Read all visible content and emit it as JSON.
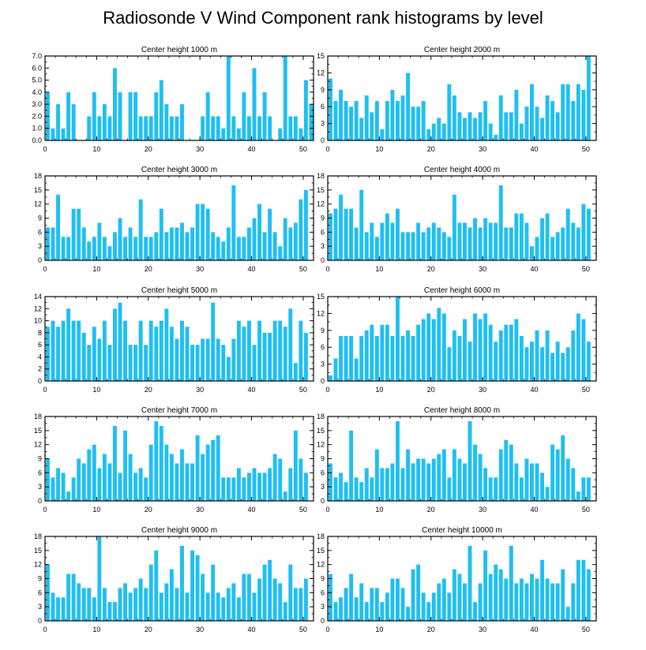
{
  "title": "Radiosonde V Wind Component rank histograms by level",
  "colors": {
    "bar": "#1fbff2",
    "axis": "#000000",
    "background": "#ffffff"
  },
  "chart_data": [
    {
      "type": "bar",
      "title": "Center height 1000 m",
      "xlim": [
        0,
        52
      ],
      "ylim": [
        0,
        7
      ],
      "xticks": [
        0,
        10,
        20,
        30,
        40,
        50
      ],
      "xtick_labels": [
        "0",
        "10",
        "20",
        "30",
        "40",
        "50"
      ],
      "yticks": [
        0,
        1,
        2,
        3,
        4,
        5,
        6,
        7
      ],
      "ytick_labels": [
        "0.0",
        "1.0",
        "2.0",
        "3.0",
        "4.0",
        "5.0",
        "6.0",
        "7.0"
      ],
      "values": [
        4,
        1,
        3,
        1,
        4,
        3,
        0,
        0,
        2,
        4,
        2,
        3,
        2,
        6,
        4,
        0,
        4,
        4,
        2,
        2,
        2,
        4,
        5,
        3,
        2,
        2,
        3,
        0,
        0,
        0,
        2,
        4,
        2,
        2,
        1,
        7,
        2,
        1,
        4,
        2,
        6,
        2,
        4,
        2,
        0,
        1,
        7,
        2,
        2,
        1,
        5,
        3
      ]
    },
    {
      "type": "bar",
      "title": "Center height 2000 m",
      "xlim": [
        0,
        52
      ],
      "ylim": [
        0,
        15
      ],
      "xticks": [
        0,
        10,
        20,
        30,
        40,
        50
      ],
      "xtick_labels": [
        "0",
        "10",
        "20",
        "30",
        "40",
        "50"
      ],
      "yticks": [
        0,
        3,
        6,
        9,
        12,
        15
      ],
      "ytick_labels": [
        "0",
        "3",
        "6",
        "9",
        "12",
        "15"
      ],
      "values": [
        11,
        7,
        9,
        7,
        6,
        7,
        4,
        8,
        5,
        7,
        2,
        7,
        9,
        7,
        8,
        12,
        6,
        6,
        7,
        2,
        3,
        4,
        3,
        10,
        8,
        5,
        4,
        5,
        4,
        5,
        7,
        3,
        1,
        8,
        5,
        5,
        9,
        3,
        6,
        10,
        6,
        4,
        8,
        7,
        5,
        10,
        10,
        7,
        10,
        9,
        15,
        0
      ]
    },
    {
      "type": "bar",
      "title": "Center height 3000 m",
      "xlim": [
        0,
        52
      ],
      "ylim": [
        0,
        18
      ],
      "xticks": [
        0,
        10,
        20,
        30,
        40,
        50
      ],
      "xtick_labels": [
        "0",
        "10",
        "20",
        "30",
        "40",
        "50"
      ],
      "yticks": [
        0,
        3,
        6,
        9,
        12,
        15,
        18
      ],
      "ytick_labels": [
        "0",
        "3",
        "6",
        "9",
        "12",
        "15",
        "18"
      ],
      "values": [
        7,
        7,
        14,
        5,
        5,
        11,
        11,
        7,
        4,
        5,
        8,
        5,
        3,
        6,
        9,
        5,
        7,
        5,
        13,
        5,
        5,
        6,
        11,
        6,
        7,
        7,
        8,
        6,
        7,
        12,
        12,
        11,
        6,
        5,
        4,
        7,
        16,
        5,
        5,
        7,
        9,
        12,
        6,
        11,
        6,
        3,
        9,
        7,
        8,
        13,
        15,
        0
      ]
    },
    {
      "type": "bar",
      "title": "Center height 4000 m",
      "xlim": [
        0,
        52
      ],
      "ylim": [
        0,
        18
      ],
      "xticks": [
        0,
        10,
        20,
        30,
        40,
        50
      ],
      "xtick_labels": [
        "0",
        "10",
        "20",
        "30",
        "40",
        "50"
      ],
      "yticks": [
        0,
        3,
        6,
        9,
        12,
        15,
        18
      ],
      "ytick_labels": [
        "0",
        "3",
        "6",
        "9",
        "12",
        "15",
        "18"
      ],
      "values": [
        10,
        11,
        14,
        11,
        11,
        7,
        15,
        6,
        8,
        5,
        8,
        10,
        8,
        11,
        6,
        6,
        6,
        8,
        6,
        7,
        8,
        7,
        6,
        5,
        14,
        8,
        8,
        7,
        9,
        7,
        9,
        8,
        8,
        16,
        7,
        7,
        10,
        10,
        8,
        3,
        5,
        9,
        10,
        5,
        6,
        7,
        11,
        8,
        7,
        12,
        11,
        0
      ]
    },
    {
      "type": "bar",
      "title": "Center height 5000 m",
      "xlim": [
        0,
        52
      ],
      "ylim": [
        0,
        14
      ],
      "xticks": [
        0,
        10,
        20,
        30,
        40,
        50
      ],
      "xtick_labels": [
        "0",
        "10",
        "20",
        "30",
        "40",
        "50"
      ],
      "yticks": [
        0,
        2,
        4,
        6,
        8,
        10,
        12,
        14
      ],
      "ytick_labels": [
        "0",
        "2",
        "4",
        "6",
        "8",
        "10",
        "12",
        "14"
      ],
      "values": [
        9,
        10,
        9,
        10,
        12,
        10,
        10,
        8,
        6,
        9,
        7,
        10,
        6,
        12,
        13,
        10,
        6,
        6,
        10,
        6,
        10,
        9,
        10,
        12,
        9,
        7,
        10,
        9,
        6,
        6,
        7,
        7,
        13,
        7,
        6,
        4,
        7,
        10,
        9,
        10,
        6,
        10,
        8,
        8,
        10,
        10,
        9,
        12,
        3,
        10,
        8,
        0
      ]
    },
    {
      "type": "bar",
      "title": "Center height 6000 m",
      "xlim": [
        0,
        52
      ],
      "ylim": [
        0,
        15
      ],
      "xticks": [
        0,
        10,
        20,
        30,
        40,
        50
      ],
      "xtick_labels": [
        "0",
        "10",
        "20",
        "30",
        "40",
        "50"
      ],
      "yticks": [
        0,
        3,
        6,
        9,
        12,
        15
      ],
      "ytick_labels": [
        "0",
        "3",
        "6",
        "9",
        "12",
        "15"
      ],
      "values": [
        1,
        4,
        8,
        8,
        8,
        4,
        8,
        9,
        10,
        8,
        10,
        10,
        8,
        15,
        8,
        9,
        8,
        10,
        11,
        12,
        11,
        13,
        12,
        6,
        9,
        8,
        11,
        7,
        12,
        11,
        12,
        10,
        7,
        9,
        10,
        10,
        11,
        8,
        6,
        7,
        9,
        6,
        9,
        5,
        7,
        5,
        6,
        9,
        12,
        11,
        7,
        0
      ]
    },
    {
      "type": "bar",
      "title": "Center height 7000 m",
      "xlim": [
        0,
        52
      ],
      "ylim": [
        0,
        18
      ],
      "xticks": [
        0,
        10,
        20,
        30,
        40,
        50
      ],
      "xtick_labels": [
        "0",
        "10",
        "20",
        "30",
        "40",
        "50"
      ],
      "yticks": [
        0,
        3,
        6,
        9,
        12,
        15,
        18
      ],
      "ytick_labels": [
        "0",
        "3",
        "6",
        "9",
        "12",
        "15",
        "18"
      ],
      "values": [
        9,
        5,
        7,
        6,
        2,
        5,
        9,
        8,
        11,
        12,
        7,
        10,
        8,
        16,
        6,
        15,
        10,
        6,
        7,
        5,
        12,
        17,
        16,
        12,
        10,
        8,
        11,
        8,
        8,
        14,
        10,
        12,
        13,
        14,
        5,
        5,
        5,
        7,
        5,
        6,
        7,
        6,
        6,
        7,
        10,
        9,
        2,
        7,
        15,
        9,
        6,
        0
      ]
    },
    {
      "type": "bar",
      "title": "Center height 8000 m",
      "xlim": [
        0,
        52
      ],
      "ylim": [
        0,
        18
      ],
      "xticks": [
        0,
        10,
        20,
        30,
        40,
        50
      ],
      "xtick_labels": [
        "0",
        "10",
        "20",
        "30",
        "40",
        "50"
      ],
      "yticks": [
        0,
        3,
        6,
        9,
        12,
        15,
        18
      ],
      "ytick_labels": [
        "0",
        "3",
        "6",
        "9",
        "12",
        "15",
        "18"
      ],
      "values": [
        8,
        5,
        6,
        4,
        15,
        5,
        4,
        7,
        5,
        11,
        7,
        7,
        8,
        17,
        7,
        11,
        8,
        9,
        9,
        8,
        9,
        10,
        11,
        5,
        11,
        9,
        8,
        17,
        12,
        10,
        7,
        5,
        5,
        11,
        13,
        12,
        8,
        5,
        9,
        8,
        8,
        6,
        3,
        12,
        11,
        14,
        9,
        7,
        2,
        5,
        5,
        0
      ]
    },
    {
      "type": "bar",
      "title": "Center height 9000 m",
      "xlim": [
        0,
        52
      ],
      "ylim": [
        0,
        18
      ],
      "xticks": [
        0,
        10,
        20,
        30,
        40,
        50
      ],
      "xtick_labels": [
        "0",
        "10",
        "20",
        "30",
        "40",
        "50"
      ],
      "yticks": [
        0,
        3,
        6,
        9,
        12,
        15,
        18
      ],
      "ytick_labels": [
        "0",
        "3",
        "6",
        "9",
        "12",
        "15",
        "18"
      ],
      "values": [
        12,
        6,
        5,
        5,
        10,
        10,
        8,
        7,
        7,
        5,
        18,
        7,
        4,
        4,
        7,
        8,
        6,
        7,
        9,
        7,
        12,
        15,
        6,
        8,
        11,
        7,
        16,
        6,
        15,
        14,
        10,
        6,
        12,
        6,
        5,
        7,
        8,
        5,
        10,
        10,
        6,
        9,
        12,
        13,
        9,
        8,
        4,
        12,
        7,
        7,
        9,
        0
      ]
    },
    {
      "type": "bar",
      "title": "Center height 10000 m",
      "xlim": [
        0,
        52
      ],
      "ylim": [
        0,
        18
      ],
      "xticks": [
        0,
        10,
        20,
        30,
        40,
        50
      ],
      "xtick_labels": [
        "0",
        "10",
        "20",
        "30",
        "40",
        "50"
      ],
      "yticks": [
        0,
        3,
        6,
        9,
        12,
        15,
        18
      ],
      "ytick_labels": [
        "0",
        "3",
        "6",
        "9",
        "12",
        "15",
        "18"
      ],
      "values": [
        10,
        4,
        5,
        7,
        10,
        5,
        8,
        4,
        7,
        7,
        4,
        6,
        9,
        9,
        7,
        3,
        11,
        12,
        6,
        4,
        6,
        8,
        9,
        6,
        11,
        10,
        8,
        16,
        4,
        8,
        15,
        10,
        12,
        11,
        9,
        16,
        8,
        9,
        8,
        10,
        9,
        13,
        9,
        8,
        8,
        11,
        3,
        8,
        13,
        13,
        11,
        0
      ]
    }
  ]
}
